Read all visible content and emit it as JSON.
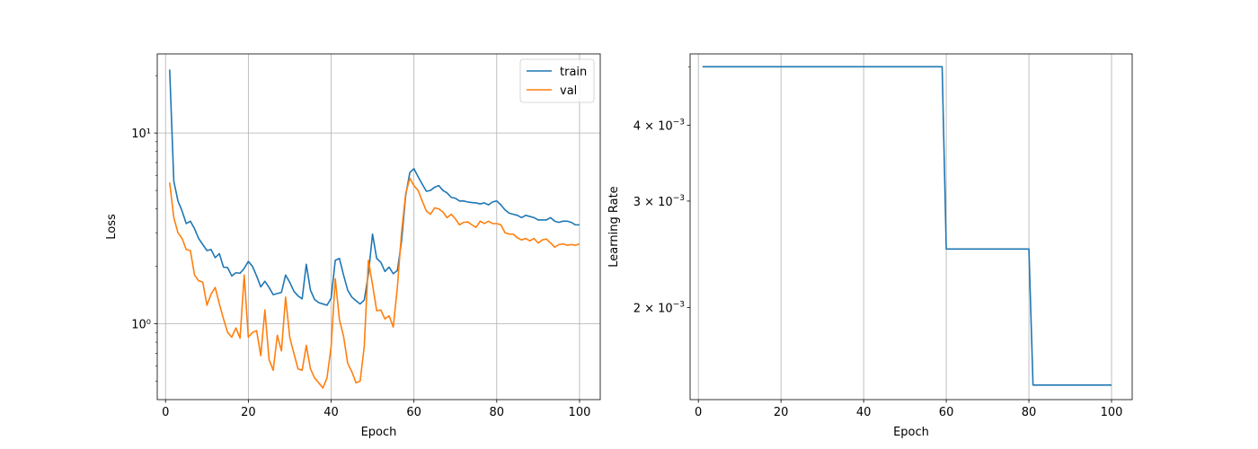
{
  "chart_data": [
    {
      "type": "line",
      "xlabel": "Epoch",
      "ylabel": "Loss",
      "yscale": "log",
      "grid": true,
      "legend": "top-right",
      "xlim": [
        -2,
        105
      ],
      "ylim": [
        0.4,
        26
      ],
      "xticks": [
        0,
        20,
        40,
        60,
        80,
        100
      ],
      "xtick_labels": [
        "0",
        "20",
        "40",
        "60",
        "80",
        "100"
      ],
      "yticks": [
        1,
        10
      ],
      "ytick_labels": [
        "10⁰",
        "10¹"
      ],
      "colors": {
        "train": "#1f77b4",
        "val": "#ff7f0e"
      },
      "x": [
        1,
        2,
        3,
        4,
        5,
        6,
        7,
        8,
        9,
        10,
        11,
        12,
        13,
        14,
        15,
        16,
        17,
        18,
        19,
        20,
        21,
        22,
        23,
        24,
        25,
        26,
        27,
        28,
        29,
        30,
        31,
        32,
        33,
        34,
        35,
        36,
        37,
        38,
        39,
        40,
        41,
        42,
        43,
        44,
        45,
        46,
        47,
        48,
        49,
        50,
        51,
        52,
        53,
        54,
        55,
        56,
        57,
        58,
        59,
        60,
        61,
        62,
        63,
        64,
        65,
        66,
        67,
        68,
        69,
        70,
        71,
        72,
        73,
        74,
        75,
        76,
        77,
        78,
        79,
        80,
        81,
        82,
        83,
        84,
        85,
        86,
        87,
        88,
        89,
        90,
        91,
        92,
        93,
        94,
        95,
        96,
        97,
        98,
        99,
        100
      ],
      "series": [
        {
          "name": "train",
          "values": [
            21.5,
            5.6,
            4.4,
            3.9,
            3.35,
            3.45,
            3.15,
            2.8,
            2.6,
            2.42,
            2.45,
            2.22,
            2.33,
            1.98,
            1.97,
            1.78,
            1.85,
            1.84,
            1.95,
            2.12,
            2.0,
            1.78,
            1.56,
            1.67,
            1.55,
            1.42,
            1.44,
            1.46,
            1.8,
            1.65,
            1.48,
            1.4,
            1.35,
            2.05,
            1.5,
            1.34,
            1.29,
            1.27,
            1.25,
            1.36,
            2.15,
            2.2,
            1.8,
            1.5,
            1.38,
            1.32,
            1.27,
            1.33,
            1.82,
            2.95,
            2.2,
            2.1,
            1.88,
            1.98,
            1.83,
            1.9,
            2.7,
            4.7,
            6.2,
            6.5,
            5.9,
            5.4,
            4.95,
            5.0,
            5.2,
            5.3,
            5.0,
            4.85,
            4.6,
            4.55,
            4.4,
            4.4,
            4.35,
            4.32,
            4.3,
            4.25,
            4.3,
            4.2,
            4.35,
            4.4,
            4.2,
            3.95,
            3.8,
            3.75,
            3.7,
            3.6,
            3.7,
            3.65,
            3.6,
            3.5,
            3.5,
            3.5,
            3.6,
            3.45,
            3.4,
            3.45,
            3.45,
            3.4,
            3.3,
            3.3
          ]
        },
        {
          "name": "val",
          "values": [
            5.5,
            3.6,
            3.0,
            2.8,
            2.45,
            2.42,
            1.8,
            1.68,
            1.65,
            1.25,
            1.43,
            1.55,
            1.27,
            1.06,
            0.9,
            0.85,
            0.95,
            0.84,
            1.8,
            0.85,
            0.9,
            0.92,
            0.68,
            1.18,
            0.65,
            0.57,
            0.87,
            0.72,
            1.38,
            0.85,
            0.7,
            0.58,
            0.57,
            0.77,
            0.58,
            0.52,
            0.49,
            0.46,
            0.52,
            0.76,
            1.72,
            1.05,
            0.86,
            0.62,
            0.56,
            0.49,
            0.5,
            0.76,
            2.15,
            1.6,
            1.17,
            1.18,
            1.06,
            1.1,
            0.96,
            1.55,
            3.0,
            4.8,
            5.8,
            5.3,
            5.0,
            4.4,
            3.9,
            3.75,
            4.05,
            4.0,
            3.85,
            3.6,
            3.75,
            3.55,
            3.3,
            3.4,
            3.42,
            3.3,
            3.2,
            3.45,
            3.35,
            3.45,
            3.35,
            3.35,
            3.3,
            3.0,
            2.95,
            2.95,
            2.82,
            2.75,
            2.8,
            2.72,
            2.8,
            2.65,
            2.75,
            2.78,
            2.65,
            2.52,
            2.6,
            2.62,
            2.58,
            2.6,
            2.58,
            2.62
          ]
        }
      ]
    },
    {
      "type": "line",
      "xlabel": "Epoch",
      "ylabel": "Learning Rate",
      "yscale": "log",
      "grid": "x",
      "xlim": [
        -2,
        105
      ],
      "ylim": [
        0.00141,
        0.00525
      ],
      "xticks": [
        0,
        20,
        40,
        60,
        80,
        100
      ],
      "xtick_labels": [
        "0",
        "20",
        "40",
        "60",
        "80",
        "100"
      ],
      "yticks": [
        0.002,
        0.003,
        0.004
      ],
      "ytick_labels": [
        {
          "mantissa": "2",
          "base": "10",
          "exp": "−3"
        },
        {
          "mantissa": "3",
          "base": "10",
          "exp": "−3"
        },
        {
          "mantissa": "4",
          "base": "10",
          "exp": "−3"
        }
      ],
      "colors": {
        "lr": "#1f77b4"
      },
      "points": [
        [
          1,
          0.005
        ],
        [
          59,
          0.005
        ],
        [
          60,
          0.0025
        ],
        [
          80,
          0.0025
        ],
        [
          81,
          0.00149
        ],
        [
          100,
          0.00149
        ]
      ]
    }
  ]
}
